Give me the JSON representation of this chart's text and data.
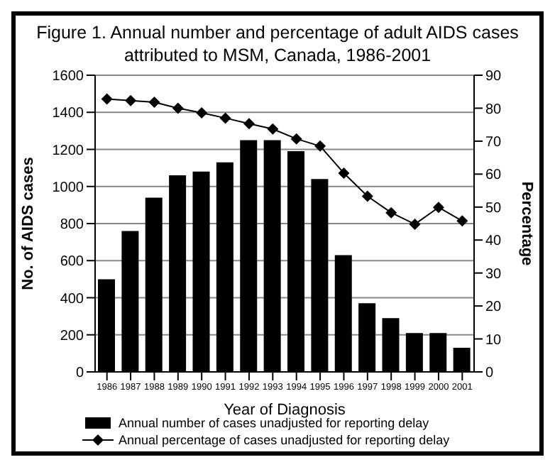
{
  "chart_data": {
    "type": "bar",
    "title": "Figure 1.  Annual number and percentage of adult AIDS cases attributed to MSM, Canada, 1986-2001",
    "xlabel": "Year of Diagnosis",
    "ylabel": "No. of AIDS cases",
    "y2label": "Percentage",
    "categories": [
      "1986",
      "1987",
      "1988",
      "1989",
      "1990",
      "1991",
      "1992",
      "1993",
      "1994",
      "1995",
      "1996",
      "1997",
      "1998",
      "1999",
      "2000",
      "2001"
    ],
    "series": [
      {
        "name": "Annual number of cases unadjusted for reporting delay",
        "color": "#000000",
        "values": [
          500,
          760,
          940,
          1060,
          1080,
          1130,
          1250,
          1250,
          1190,
          1040,
          630,
          370,
          290,
          210,
          210,
          130
        ]
      },
      {
        "name": "Annual percentage of cases unadjusted for reporting delay",
        "type": "line",
        "axis": "y2",
        "color": "#000000",
        "marker": "diamond",
        "values": [
          82.8,
          82.3,
          81.8,
          80,
          78.6,
          77,
          75.3,
          73.7,
          70.7,
          68.5,
          60.3,
          53.3,
          48.3,
          44.8,
          49.9,
          45.8
        ]
      }
    ],
    "ylim": [
      0,
      1600
    ],
    "yticks": [
      0,
      200,
      400,
      600,
      800,
      1000,
      1200,
      1400,
      1600
    ],
    "y2lim": [
      0,
      90
    ],
    "y2ticks": [
      0,
      10,
      20,
      30,
      40,
      50,
      60,
      70,
      80,
      90
    ],
    "grid": "y",
    "legend": "bottom"
  }
}
